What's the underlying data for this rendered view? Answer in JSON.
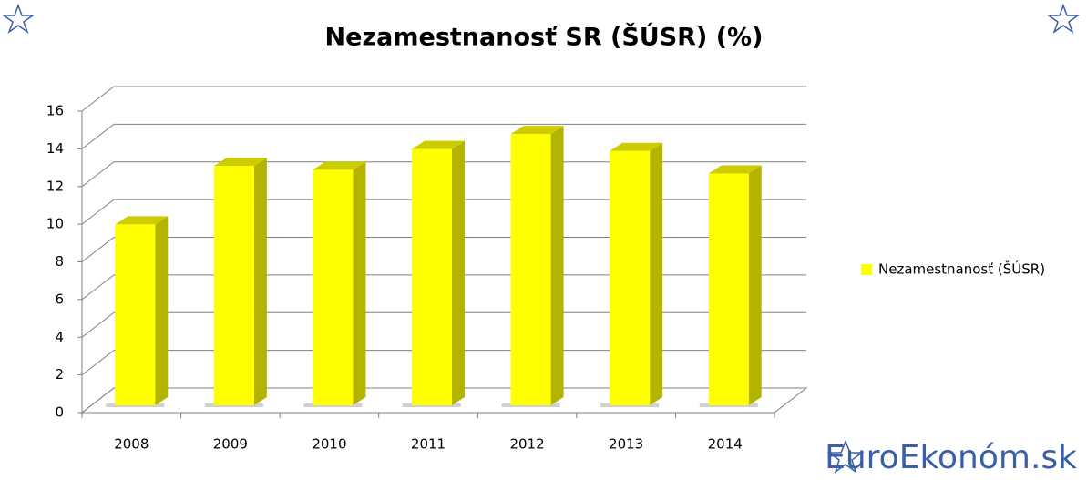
{
  "chart_data": {
    "type": "bar3d",
    "title": "Nezamestnanosť SR (ŠÚSR) (%)",
    "categories": [
      "2008",
      "2009",
      "2010",
      "2011",
      "2012",
      "2013",
      "2014"
    ],
    "series": [
      {
        "name": "Nezamestnanosť  (ŠÚSR)",
        "color": "#ffff00",
        "values": [
          9.6,
          12.7,
          12.5,
          13.6,
          14.4,
          13.5,
          12.3
        ]
      }
    ],
    "ylim": [
      0,
      16
    ],
    "yticks": [
      0,
      2,
      4,
      6,
      8,
      10,
      12,
      14,
      16
    ],
    "grid": true,
    "legend": "right"
  },
  "watermark": "EuroEkonóm.sk"
}
